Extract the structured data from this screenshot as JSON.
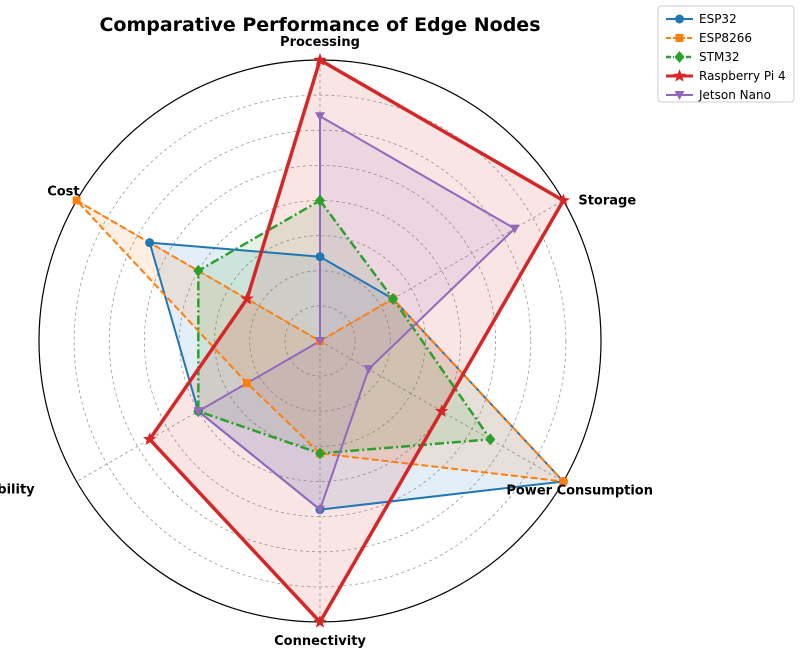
{
  "chart_data": {
    "type": "radar",
    "title": "Comparative Performance of Edge Nodes",
    "axes": [
      "Processing",
      "Storage",
      "Power Consumption",
      "Connectivity",
      "Scalability",
      "Cost"
    ],
    "rmax": 10,
    "grid": true,
    "legend_position": "top-right",
    "series": [
      {
        "name": "ESP32",
        "values": [
          3,
          3,
          10,
          6,
          5,
          7
        ],
        "color": "#1f77b4",
        "marker": "circle",
        "linestyle": "solid",
        "linewidth": 2
      },
      {
        "name": "ESP8266",
        "values": [
          0,
          3,
          10,
          4,
          3,
          10
        ],
        "color": "#ff7f0e",
        "marker": "square",
        "linestyle": "dashed",
        "linewidth": 2
      },
      {
        "name": "STM32",
        "values": [
          5,
          3,
          7,
          4,
          5,
          5
        ],
        "color": "#2ca02c",
        "marker": "diamond",
        "linestyle": "dashdot",
        "linewidth": 2.5
      },
      {
        "name": "Raspberry Pi 4",
        "values": [
          10,
          10,
          5,
          10,
          7,
          3
        ],
        "color": "#d62728",
        "marker": "star",
        "linestyle": "solid",
        "linewidth": 3.5
      },
      {
        "name": "Jetson Nano",
        "values": [
          8,
          8,
          2,
          6,
          5,
          0
        ],
        "color": "#9467bd",
        "marker": "triangle-down",
        "linestyle": "solid",
        "linewidth": 2
      }
    ]
  }
}
